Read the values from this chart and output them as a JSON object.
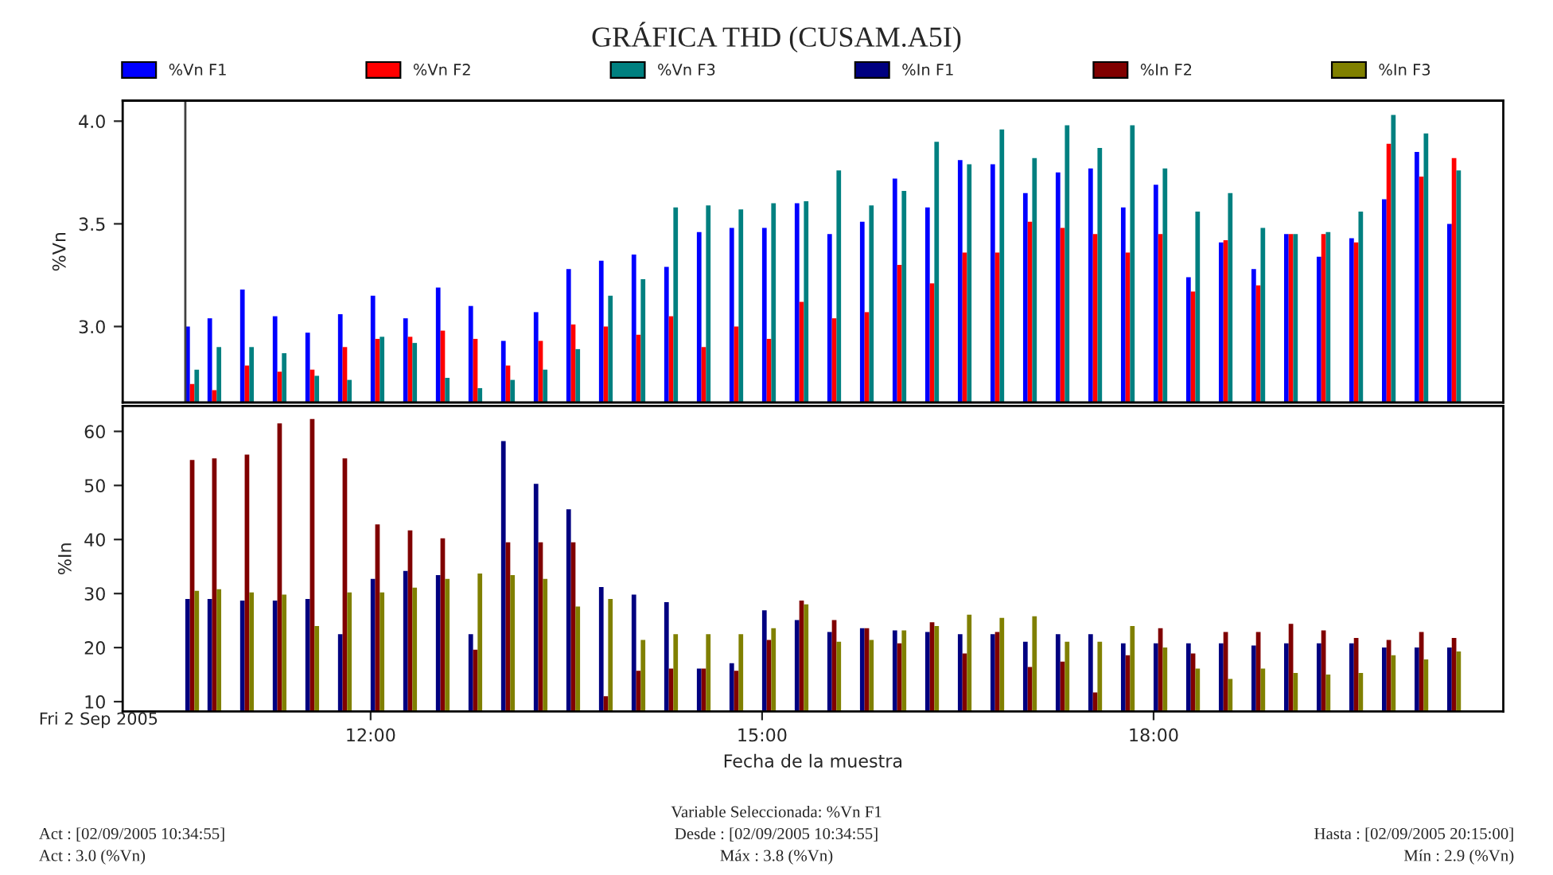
{
  "chart_data": [
    {
      "type": "bar",
      "title": "GRÁFICA THD (CUSAM.A5I)",
      "ylabel": "%Vn",
      "legend": "top",
      "tick_labels": "y",
      "x": [
        10.58,
        10.75,
        11.0,
        11.25,
        11.5,
        11.75,
        12.0,
        12.25,
        12.5,
        12.75,
        13.0,
        13.25,
        13.5,
        13.75,
        14.0,
        14.25,
        14.5,
        14.75,
        15.0,
        15.25,
        15.5,
        15.75,
        16.0,
        16.25,
        16.5,
        16.75,
        17.0,
        17.25,
        17.5,
        17.75,
        18.0,
        18.25,
        18.5,
        18.75,
        19.0,
        19.25,
        19.5,
        19.75,
        20.0,
        20.25
      ],
      "series": [
        {
          "name": "%Vn F1",
          "color": "#0000ff",
          "values": [
            3.0,
            3.04,
            3.18,
            3.05,
            2.97,
            3.06,
            3.15,
            3.04,
            3.19,
            3.1,
            2.93,
            3.07,
            3.28,
            3.32,
            3.35,
            3.29,
            3.46,
            3.48,
            3.48,
            3.6,
            3.45,
            3.51,
            3.72,
            3.58,
            3.81,
            3.79,
            3.65,
            3.75,
            3.77,
            3.58,
            3.69,
            3.24,
            3.41,
            3.28,
            3.45,
            3.34,
            3.43,
            3.62,
            3.85,
            3.5
          ]
        },
        {
          "name": "%Vn F2",
          "color": "#ff0000",
          "values": [
            2.72,
            2.69,
            2.81,
            2.78,
            2.79,
            2.9,
            2.94,
            2.95,
            2.98,
            2.94,
            2.81,
            2.93,
            3.01,
            3.0,
            2.96,
            3.05,
            2.9,
            3.0,
            2.94,
            3.12,
            3.04,
            3.07,
            3.3,
            3.21,
            3.36,
            3.36,
            3.51,
            3.48,
            3.45,
            3.36,
            3.45,
            3.17,
            3.42,
            3.2,
            3.45,
            3.45,
            3.41,
            3.89,
            3.73,
            3.82
          ]
        },
        {
          "name": "%Vn F3",
          "color": "#008080",
          "values": [
            2.79,
            2.9,
            2.9,
            2.87,
            2.76,
            2.74,
            2.95,
            2.92,
            2.75,
            2.7,
            2.74,
            2.79,
            2.89,
            3.15,
            3.23,
            3.58,
            3.59,
            3.57,
            3.6,
            3.61,
            3.76,
            3.59,
            3.66,
            3.9,
            3.79,
            3.96,
            3.82,
            3.98,
            3.87,
            3.98,
            3.77,
            3.56,
            3.65,
            3.48,
            3.45,
            3.46,
            3.56,
            4.03,
            3.94,
            3.76
          ]
        }
      ],
      "xlim": [
        10.1,
        20.68
      ],
      "ylim": [
        2.63,
        4.1
      ],
      "yticks": [
        {
          "value": 3.0,
          "label": "3.0"
        },
        {
          "value": 3.5,
          "label": "3.5"
        },
        {
          "value": 4.0,
          "label": "4.0"
        }
      ],
      "ref_lines": [
        {
          "axis": "x",
          "value": 10.58,
          "color": "#404040"
        }
      ]
    },
    {
      "type": "bar",
      "xlabel": "Fecha de la muestra",
      "ylabel": "%In",
      "legend": "top",
      "x": [
        10.58,
        10.75,
        11.0,
        11.25,
        11.5,
        11.75,
        12.0,
        12.25,
        12.5,
        12.75,
        13.0,
        13.25,
        13.5,
        13.75,
        14.0,
        14.25,
        14.5,
        14.75,
        15.0,
        15.25,
        15.5,
        15.75,
        16.0,
        16.25,
        16.5,
        16.75,
        17.0,
        17.25,
        17.5,
        17.75,
        18.0,
        18.25,
        18.5,
        18.75,
        19.0,
        19.25,
        19.5,
        19.75,
        20.0,
        20.25
      ],
      "series": [
        {
          "name": "%In F1",
          "color": "#000080",
          "values": [
            29.0,
            29.0,
            28.7,
            28.7,
            29.0,
            22.5,
            32.7,
            34.2,
            33.4,
            22.5,
            58.2,
            50.3,
            45.6,
            31.2,
            29.8,
            28.4,
            16.1,
            17.1,
            26.9,
            25.1,
            22.9,
            23.6,
            23.2,
            22.9,
            22.5,
            22.5,
            21.1,
            22.5,
            22.5,
            20.8,
            20.8,
            20.8,
            20.8,
            20.4,
            20.8,
            20.8,
            20.8,
            20.0,
            20.0,
            20.0
          ]
        },
        {
          "name": "%In F2",
          "color": "#800000",
          "values": [
            54.7,
            55.0,
            55.7,
            61.5,
            62.3,
            55.0,
            42.8,
            41.7,
            40.2,
            19.6,
            39.5,
            39.5,
            39.5,
            11.0,
            15.7,
            16.1,
            16.1,
            15.7,
            21.4,
            28.7,
            25.1,
            23.6,
            20.8,
            24.7,
            18.9,
            22.9,
            16.4,
            17.4,
            11.7,
            18.6,
            23.6,
            18.9,
            22.9,
            22.9,
            24.4,
            23.2,
            21.8,
            21.4,
            22.9,
            21.8
          ]
        },
        {
          "name": "%In F3",
          "color": "#808000",
          "values": [
            30.5,
            30.8,
            30.2,
            29.8,
            24.0,
            30.2,
            30.2,
            31.1,
            32.7,
            33.7,
            33.4,
            32.7,
            27.6,
            29.0,
            21.4,
            22.5,
            22.5,
            22.5,
            23.6,
            28.0,
            21.1,
            21.4,
            23.2,
            24.0,
            26.1,
            25.5,
            25.8,
            21.1,
            21.1,
            24.0,
            20.0,
            16.1,
            14.2,
            16.1,
            15.3,
            15.0,
            15.3,
            18.6,
            17.8,
            19.3
          ]
        }
      ],
      "xlim": [
        10.1,
        20.68
      ],
      "ylim": [
        8.2,
        64.7
      ],
      "xticks": [
        {
          "value": 12,
          "label": "12:00"
        },
        {
          "value": 15,
          "label": "15:00"
        },
        {
          "value": 18,
          "label": "18:00"
        }
      ],
      "yticks": [
        10,
        20,
        30,
        40,
        50,
        60
      ],
      "annotations": [
        "Fri 2 Sep 2005",
        "Variable Seleccionada: %Vn F1",
        "Act : [02/09/2005 10:34:55]",
        "Desde : [02/09/2005 10:34:55]",
        "Hasta : [02/09/2005 20:15:00]",
        "Act : 3.0 (%Vn)",
        "Máx : 3.8 (%Vn)",
        "Mín : 2.9 (%Vn)"
      ]
    }
  ]
}
